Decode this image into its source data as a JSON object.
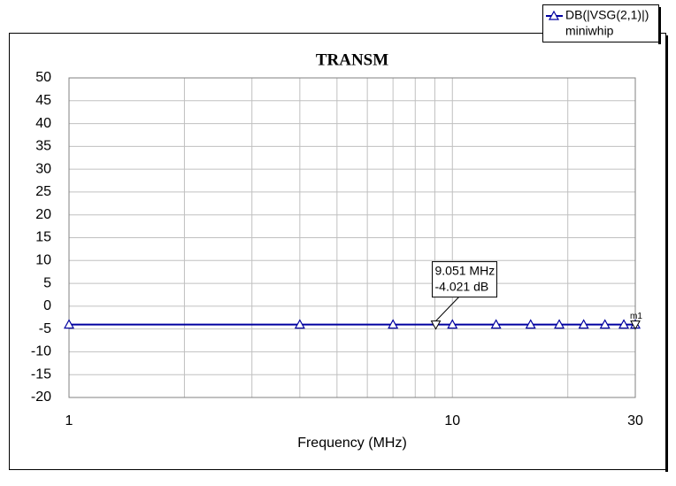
{
  "chart_data": {
    "type": "line",
    "title": "TRANSM",
    "x_label": "Frequency (MHz)",
    "log_x": true,
    "xlim": [
      1,
      30
    ],
    "xticks": [
      1,
      10,
      30
    ],
    "x_minor_grid": [
      2,
      3,
      4,
      5,
      6,
      7,
      8,
      9,
      20
    ],
    "ylim": [
      -20,
      50
    ],
    "yticks": [
      -20,
      -15,
      -10,
      -5,
      0,
      5,
      10,
      15,
      20,
      25,
      30,
      35,
      40,
      45,
      50
    ],
    "grid": true,
    "series": [
      {
        "name": "DB(|VSG(2,1)|)",
        "subname": "miniwhip",
        "color": "#0000a0",
        "x": [
          1,
          4,
          7,
          10,
          13,
          16,
          19,
          22,
          25,
          28,
          30
        ],
        "values": [
          -4.02,
          -4.02,
          -4.02,
          -4.02,
          -4.02,
          -4.02,
          -4.02,
          -4.02,
          -4.02,
          -4.02,
          -4.02
        ]
      }
    ],
    "markers": [
      {
        "name": "m1",
        "x": 30,
        "y": -4.02
      },
      {
        "x": 9.051,
        "y": -4.021,
        "lines": [
          "9.051 MHz",
          "-4.021 dB"
        ]
      }
    ]
  }
}
